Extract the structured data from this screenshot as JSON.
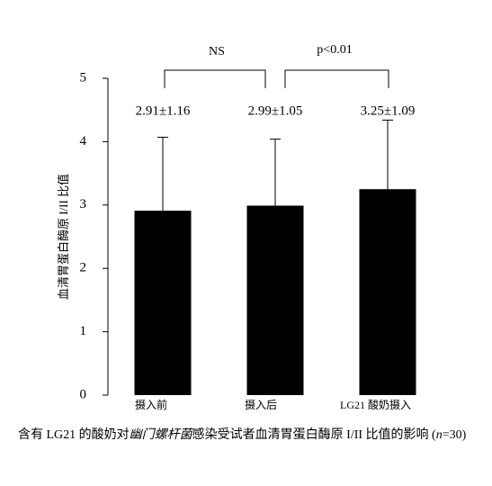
{
  "chart_data": {
    "type": "bar",
    "y_label": "血清胃蛋白酶原 I/II 比值",
    "categories": [
      "摄入前",
      "摄入后",
      "LG21 酸奶摄入"
    ],
    "values": [
      2.91,
      2.99,
      3.25
    ],
    "errors": [
      1.16,
      1.05,
      1.09
    ],
    "value_labels": [
      "2.91±1.16",
      "2.99±1.05",
      "3.25±1.09"
    ],
    "color": "#000000",
    "ylim": [
      0,
      5
    ],
    "yticks": [
      0,
      1,
      2,
      3,
      4,
      5
    ],
    "annotations": [
      "NS",
      "p<0.01"
    ]
  },
  "caption": [
    "含有 LG21 的酸奶对",
    "幽门螺杆菌",
    "感染受试者血清胃蛋白酶原 I/II 比值的影响 (",
    "n",
    "=30)"
  ]
}
